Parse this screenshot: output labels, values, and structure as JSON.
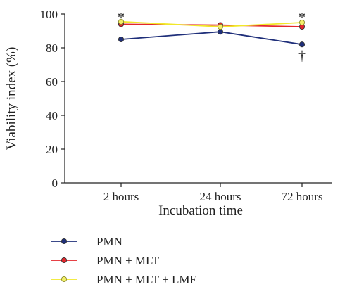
{
  "chart_data": {
    "type": "line",
    "title": "",
    "xlabel": "Incubation time",
    "ylabel": "Viability index (%)",
    "ylim": [
      0,
      100
    ],
    "yticks": [
      "0",
      "20",
      "40",
      "60",
      "80",
      "100"
    ],
    "categories": [
      "2 hours",
      "24 hours",
      "72 hours"
    ],
    "grid": false,
    "legend_position": "bottom-left",
    "series": [
      {
        "name": "PMN",
        "values": [
          85,
          89.5,
          82
        ],
        "color": "#1f2f7a",
        "marker_fill": "#1f2f7a"
      },
      {
        "name": "PMN + MLT",
        "values": [
          94,
          93.5,
          92.5
        ],
        "color": "#e3262c",
        "marker_fill": "#e3262c"
      },
      {
        "name": "PMN + MLT + LME",
        "values": [
          95.5,
          92.5,
          95
        ],
        "color": "#f1e82a",
        "marker_fill": "#f3ef6a"
      }
    ],
    "annotations": [
      {
        "text": "*",
        "category": "2 hours",
        "y": 98
      },
      {
        "text": "*",
        "category": "72 hours",
        "y": 98
      },
      {
        "text": "†",
        "category": "72 hours",
        "y": 76
      }
    ]
  }
}
